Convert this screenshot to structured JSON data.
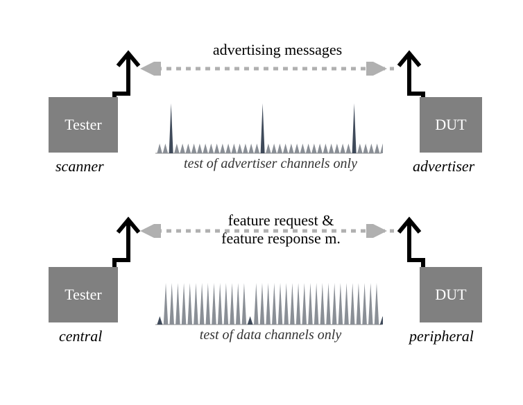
{
  "diagram": {
    "bg": "#ffffff",
    "box_fill": "#808080",
    "box_text_color": "#ffffff",
    "text_color": "#000000",
    "antenna_color": "#000000",
    "arrow_color": "#b0b0b0",
    "spike_tall": "#3f4a5a",
    "spike_short": "#8a8f96",
    "font_family": "Georgia, serif",
    "box_fontsize": 22,
    "label_fontsize": 22,
    "role_fontsize": 22,
    "caption_fontsize": 20,
    "antenna_stroke": 6,
    "arrow_stroke": 5,
    "arrow_dash": "6,6"
  },
  "top": {
    "left_box": "Tester",
    "right_box": "DUT",
    "left_role": "scanner",
    "right_role": "advertiser",
    "message": "advertising messages",
    "caption": "test of advertiser channels only",
    "spectrum": {
      "type": "spike-row",
      "tall_indices": [
        2,
        18,
        34
      ],
      "total_spikes": 40,
      "tall_height": 72,
      "short_height": 14
    }
  },
  "bottom": {
    "left_box": "Tester",
    "right_box": "DUT",
    "left_role": "central",
    "right_role": "peripheral",
    "message_line1": "feature request &",
    "message_line2": "feature response m.",
    "caption": "test of data channels only",
    "spectrum": {
      "type": "spike-row",
      "short_indices": [
        0,
        15,
        37
      ],
      "total_spikes": 38,
      "tall_height": 60,
      "short_height": 12
    }
  }
}
